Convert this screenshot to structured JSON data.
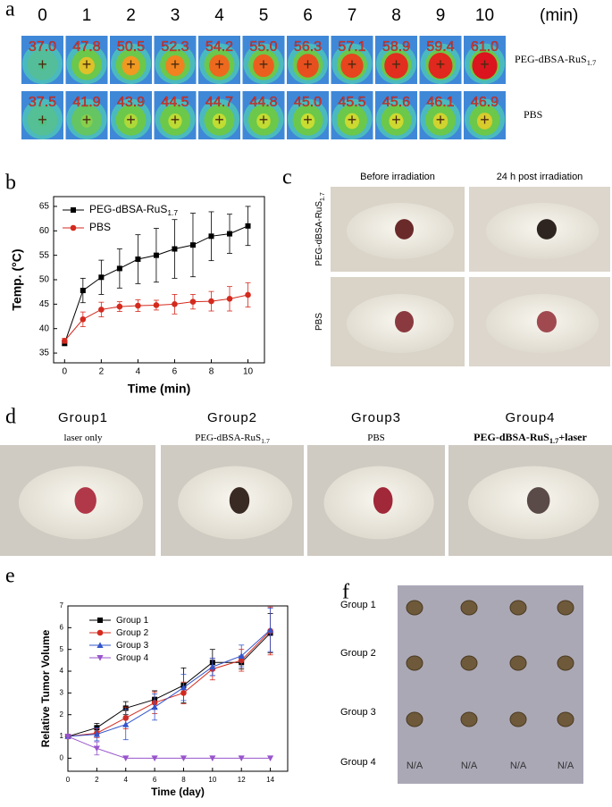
{
  "panel_a": {
    "letter": "a",
    "times": [
      "0",
      "1",
      "2",
      "3",
      "4",
      "5",
      "6",
      "7",
      "8",
      "9",
      "10"
    ],
    "unit": "(min)",
    "rows": [
      {
        "label": "PEG-dBSA-RuS",
        "label_sub": "1.7",
        "temps": [
          "37.0",
          "47.8",
          "50.5",
          "52.3",
          "54.2",
          "55.0",
          "56.3",
          "57.1",
          "58.9",
          "59.4",
          "61.0"
        ]
      },
      {
        "label": "PBS",
        "temps": [
          "37.5",
          "41.9",
          "43.9",
          "44.5",
          "44.7",
          "44.8",
          "45.0",
          "45.5",
          "45.6",
          "46.1",
          "46.9"
        ]
      }
    ]
  },
  "panel_b": {
    "letter": "b"
  },
  "panel_c": {
    "letter": "c",
    "columns": [
      "Before irradiation",
      "24 h post irradiation"
    ],
    "rows": [
      {
        "label": "PEG-dBSA-RuS",
        "label_sub": "1.7"
      },
      {
        "label": "PBS"
      }
    ]
  },
  "panel_d": {
    "letter": "d",
    "groups": [
      {
        "title": "Group1",
        "label": "laser only"
      },
      {
        "title": "Group2",
        "label": "PEG-dBSA-RuS",
        "label_sub": "1.7"
      },
      {
        "title": "Group3",
        "label": "PBS"
      },
      {
        "title": "Group4",
        "label": "PEG-dBSA-RuS",
        "label_sub": "1.7",
        "label_after": "+laser"
      }
    ]
  },
  "panel_e": {
    "letter": "e"
  },
  "panel_f": {
    "letter": "f",
    "groups": [
      "Group 1",
      "Group 2",
      "Group 3",
      "Group 4"
    ],
    "missing": [
      "N/A",
      "N/A",
      "N/A",
      "N/A"
    ]
  },
  "chart_data": [
    {
      "type": "line",
      "x_label": "Time (min)",
      "y_label": "Temp. (°C)",
      "x": [
        0,
        1,
        2,
        3,
        4,
        5,
        6,
        7,
        8,
        9,
        10
      ],
      "xlim": [
        -0.6,
        10.9
      ],
      "ylim": [
        33,
        67
      ],
      "xticks": [
        0,
        2,
        4,
        6,
        8,
        10
      ],
      "yticks": [
        35,
        40,
        45,
        50,
        55,
        60,
        65
      ],
      "legend": "upper left",
      "series": [
        {
          "name": "PEG-dBSA-RuS",
          "name_sub": "1.7",
          "color": "#000000",
          "marker": "square",
          "values": [
            37.0,
            47.8,
            50.5,
            52.3,
            54.2,
            55.0,
            56.3,
            57.1,
            58.9,
            59.4,
            61.0
          ],
          "errors": [
            0.5,
            2.5,
            3.5,
            4,
            5,
            5.5,
            6,
            6.5,
            5,
            4,
            4
          ]
        },
        {
          "name": "PBS",
          "color": "#d42a1e",
          "marker": "circle",
          "values": [
            37.5,
            41.9,
            43.9,
            44.5,
            44.7,
            44.8,
            45.0,
            45.5,
            45.6,
            46.1,
            46.9
          ],
          "errors": [
            0.5,
            1.5,
            1.5,
            1,
            1.2,
            1,
            2,
            1.5,
            2,
            2.5,
            2.5
          ]
        }
      ]
    },
    {
      "type": "line",
      "x_label": "Time (day)",
      "y_label": "Relative Tumor Volume",
      "x": [
        0,
        2,
        4,
        6,
        8,
        10,
        12,
        14
      ],
      "xlim": [
        0,
        15.2
      ],
      "ylim": [
        -0.6,
        7
      ],
      "xticks": [
        0,
        2,
        4,
        6,
        8,
        10,
        12,
        14
      ],
      "yticks": [
        0,
        1,
        2,
        3,
        4,
        5,
        6,
        7
      ],
      "legend": "upper left",
      "series": [
        {
          "name": "Group 1",
          "color": "#000000",
          "marker": "square",
          "values": [
            1,
            1.4,
            2.3,
            2.7,
            3.35,
            4.4,
            4.4,
            5.75
          ],
          "errors": [
            0.1,
            0.2,
            0.3,
            0.4,
            0.8,
            0.6,
            0.3,
            0.9
          ]
        },
        {
          "name": "Group 2",
          "color": "#d42a1e",
          "marker": "circle",
          "values": [
            1,
            1.15,
            1.85,
            2.55,
            3.0,
            4.1,
            4.5,
            5.85
          ],
          "errors": [
            0.1,
            0.2,
            0.5,
            0.5,
            0.5,
            0.5,
            0.5,
            1.1
          ]
        },
        {
          "name": "Group 3",
          "color": "#3355cc",
          "marker": "triangle-up",
          "values": [
            1,
            1.1,
            1.55,
            2.35,
            3.25,
            4.2,
            4.7,
            5.9
          ],
          "errors": [
            0.1,
            0.3,
            0.7,
            0.6,
            0.6,
            0.4,
            0.5,
            1.0
          ]
        },
        {
          "name": "Group 4",
          "color": "#9955cc",
          "marker": "triangle-down",
          "values": [
            1,
            0.45,
            0,
            0,
            0,
            0,
            0,
            0
          ],
          "errors": [
            0.1,
            0.3,
            0,
            0,
            0,
            0,
            0,
            0
          ]
        }
      ]
    }
  ]
}
